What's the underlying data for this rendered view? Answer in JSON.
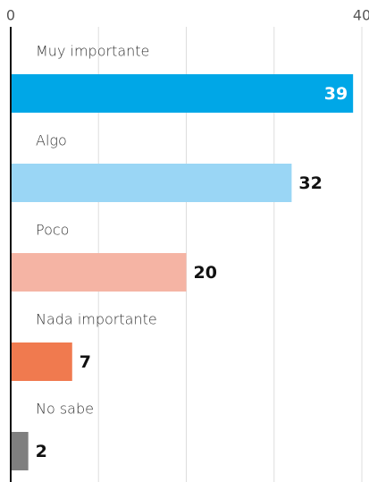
{
  "chart_data": {
    "type": "hbar",
    "categories": [
      "Muy importante",
      "Algo",
      "Poco",
      "Nada importante",
      "No sabe"
    ],
    "values": [
      39,
      32,
      20,
      7,
      2
    ],
    "colors": [
      "#00a7e7",
      "#9ad6f5",
      "#f5b4a4",
      "#f07a4f",
      "#7f7f7f"
    ],
    "xlim": [
      0,
      40
    ],
    "xticks": [
      0,
      40
    ],
    "xgrid": [
      10,
      20,
      30,
      40
    ]
  }
}
